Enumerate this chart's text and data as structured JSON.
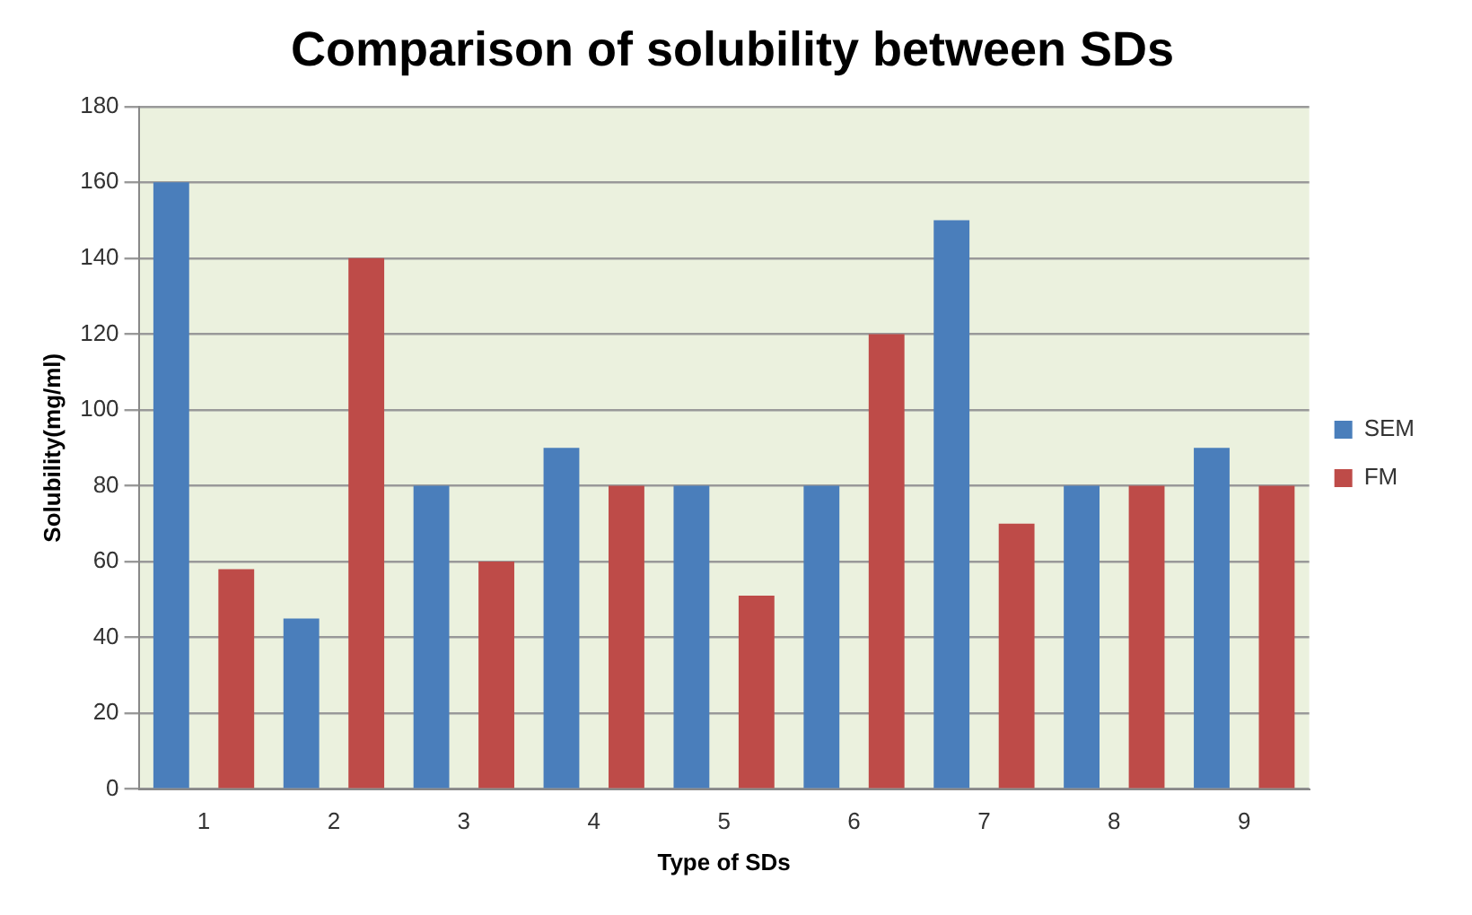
{
  "chart_data": {
    "type": "bar",
    "title": "Comparison of solubility between SDs",
    "xlabel": "Type of SDs",
    "ylabel": "Solubility(mg/ml)",
    "categories": [
      "1",
      "2",
      "3",
      "4",
      "5",
      "6",
      "7",
      "8",
      "9"
    ],
    "series": [
      {
        "name": "SEM",
        "color": "#4a7ebb",
        "values": [
          160,
          45,
          80,
          90,
          80,
          80,
          150,
          80,
          90
        ]
      },
      {
        "name": "FM",
        "color": "#be4b48",
        "values": [
          58,
          140,
          60,
          80,
          51,
          120,
          70,
          80,
          80
        ]
      }
    ],
    "ylim": [
      0,
      180
    ],
    "yticks": [
      0,
      20,
      40,
      60,
      80,
      100,
      120,
      140,
      160,
      180
    ],
    "grid": "y",
    "legend": "right"
  }
}
